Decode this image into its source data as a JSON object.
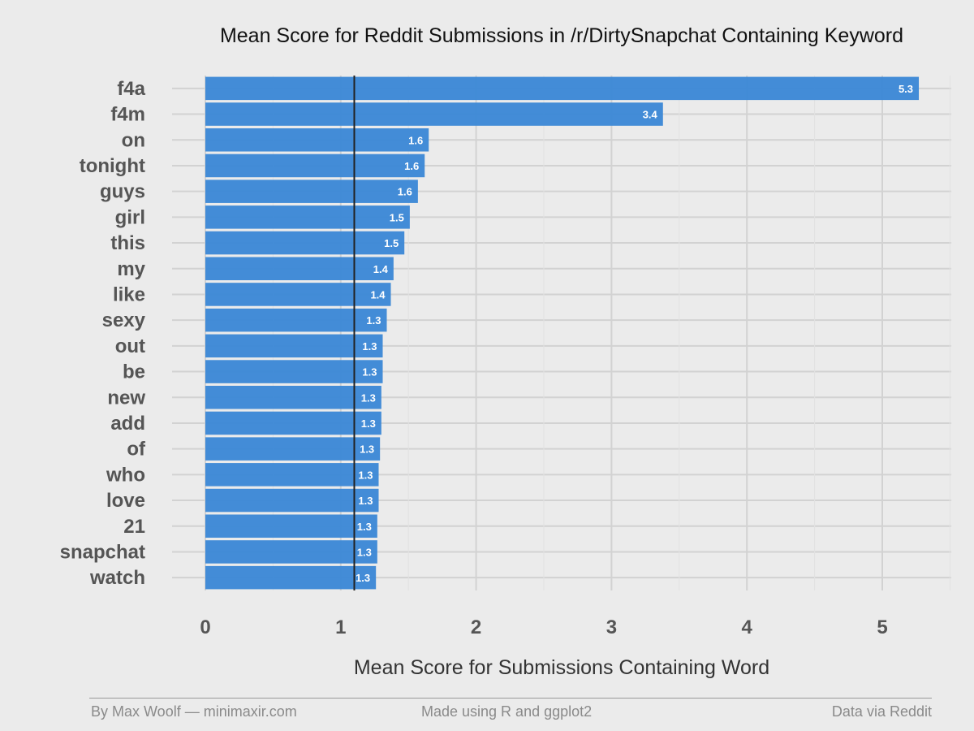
{
  "chart_data": {
    "type": "bar",
    "orientation": "horizontal",
    "title": "Mean Score for Reddit Submissions in /r/DirtySnapchat Containing Keyword",
    "xlabel": "Mean Score for Submissions Containing Word",
    "ylabel": "",
    "categories": [
      "f4a",
      "f4m",
      "on",
      "tonight",
      "guys",
      "girl",
      "this",
      "my",
      "like",
      "sexy",
      "out",
      "be",
      "new",
      "add",
      "of",
      "who",
      "love",
      "21",
      "snapchat",
      "watch"
    ],
    "values": [
      5.27,
      3.38,
      1.65,
      1.62,
      1.57,
      1.51,
      1.47,
      1.39,
      1.37,
      1.34,
      1.31,
      1.31,
      1.3,
      1.3,
      1.29,
      1.28,
      1.28,
      1.27,
      1.27,
      1.26
    ],
    "value_labels": [
      "5.3",
      "3.4",
      "1.6",
      "1.6",
      "1.6",
      "1.5",
      "1.5",
      "1.4",
      "1.4",
      "1.3",
      "1.3",
      "1.3",
      "1.3",
      "1.3",
      "1.3",
      "1.3",
      "1.3",
      "1.3",
      "1.3",
      "1.3"
    ],
    "xlim": [
      0,
      5.5
    ],
    "xticks": [
      0,
      1,
      2,
      3,
      4,
      5
    ],
    "xtick_labels": [
      "0",
      "1",
      "2",
      "3",
      "4",
      "5"
    ],
    "reference_line": 1.1,
    "bar_color": "#3a87d6",
    "reference_line_color": "#222222",
    "grid": true,
    "legend": "none"
  },
  "footer": {
    "left": "By Max Woolf — minimaxir.com",
    "center": "Made using R and ggplot2",
    "right": "Data via Reddit"
  }
}
